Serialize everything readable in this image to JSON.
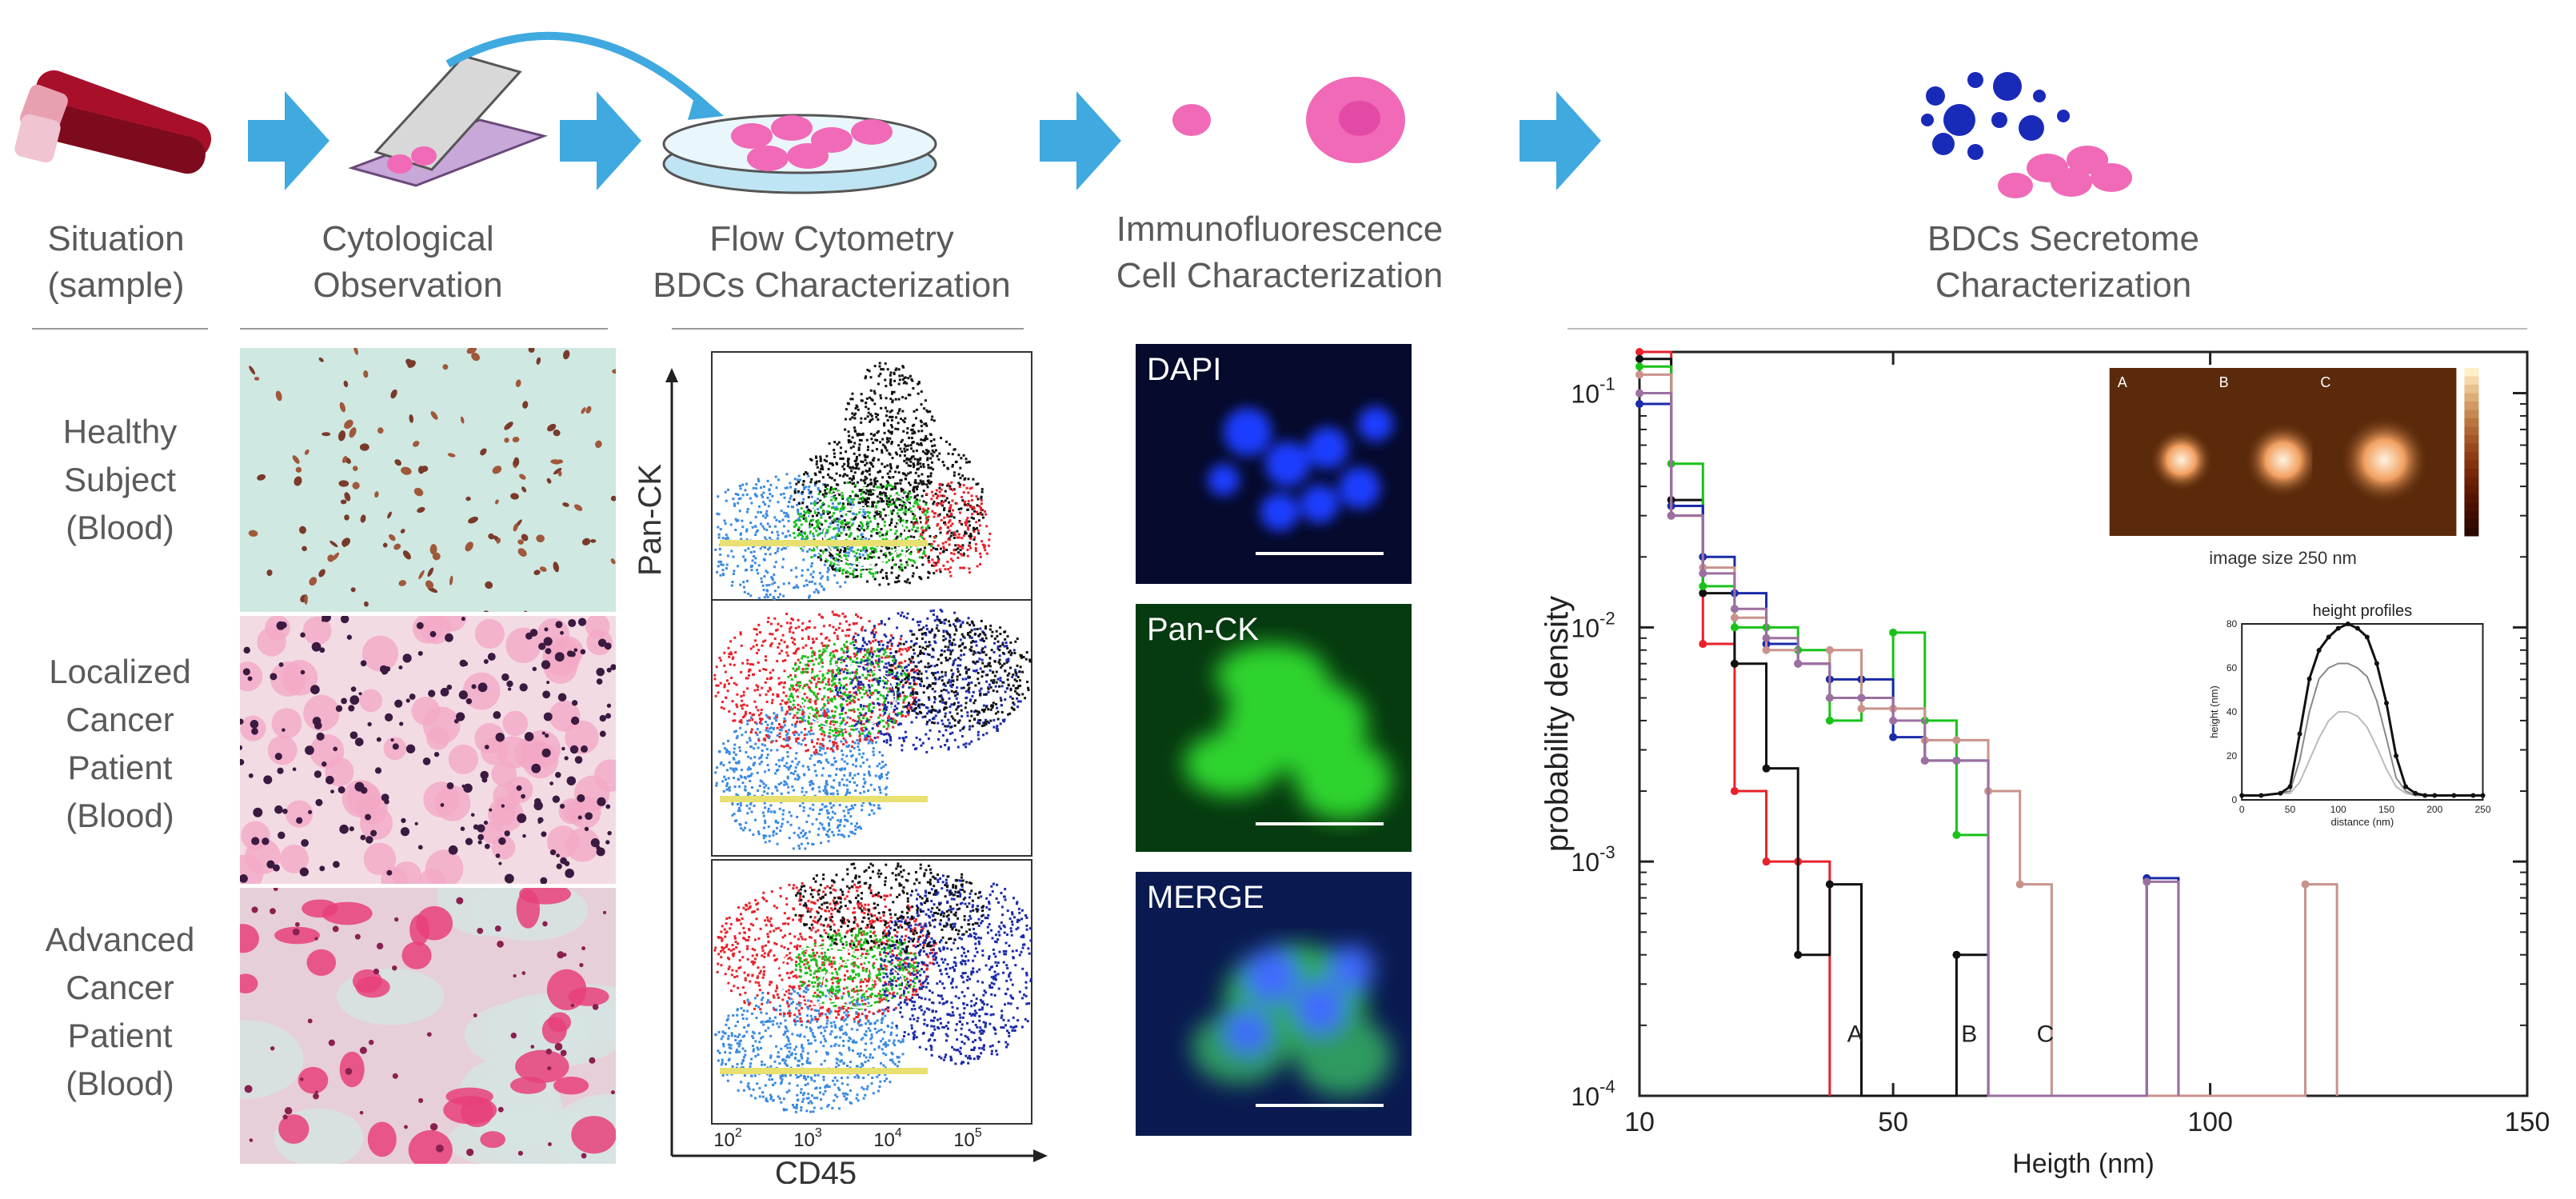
{
  "headers": {
    "situation": "Situation\n(sample)",
    "cytology": "Cytological\nObservation",
    "flow": "Flow Cytometry\nBDCs Characterization",
    "immuno": "Immunofluorescence\nCell Characterization",
    "secretome": "BDCs Secretome\nCharacterization"
  },
  "rows": {
    "healthy": "Healthy\nSubject\n(Blood)",
    "localized": "Localized\nCancer\nPatient\n(Blood)",
    "advanced": "Advanced\nCancer\nPatient\n(Blood)"
  },
  "flow_axes": {
    "y": "Pan-CK",
    "x": "CD45"
  },
  "flow_ticks": [
    {
      "b": "10",
      "e": "2"
    },
    {
      "b": "10",
      "e": "3"
    },
    {
      "b": "10",
      "e": "4"
    },
    {
      "b": "10",
      "e": "5"
    }
  ],
  "if_labels": [
    "DAPI",
    "Pan-CK",
    "MERGE"
  ],
  "colors": {
    "arrow": "#3fa9e0",
    "blood": "#a8102a",
    "cell": "#f06ab8",
    "red": "#e8222b",
    "black": "#111111",
    "green": "#19c219",
    "blue": "#1a2aa8",
    "brown": "#c9938c",
    "purple": "#9b6fa0"
  },
  "chart_data": {
    "type": "line",
    "step": true,
    "xscale": "linear",
    "yscale": "log",
    "xlim": [
      10,
      150
    ],
    "ylim": [
      0.0001,
      0.15
    ],
    "xlabel": "Heigth (nm)",
    "ylabel": "probability density",
    "xticks": [
      "10",
      "50",
      "100",
      "150"
    ],
    "yticks": [
      {
        "b": "10",
        "e": "-1"
      },
      {
        "b": "10",
        "e": "-2"
      },
      {
        "b": "10",
        "e": "-3"
      },
      {
        "b": "10",
        "e": "-4"
      }
    ],
    "peak_labels": [
      "A",
      "B",
      "C"
    ],
    "series": [
      {
        "name": "red",
        "x": [
          10,
          15,
          20,
          25,
          30,
          35,
          40
        ],
        "y": [
          0.15,
          0.03,
          0.0085,
          0.002,
          0.001,
          0.001,
          0.0001
        ]
      },
      {
        "name": "black",
        "x": [
          10,
          15,
          20,
          25,
          30,
          35,
          40,
          45,
          55,
          60,
          65
        ],
        "y": [
          0.14,
          0.035,
          0.014,
          0.007,
          0.0025,
          0.0004,
          0.0008,
          0.0001,
          0.0001,
          0.0004,
          0.0001
        ]
      },
      {
        "name": "green",
        "x": [
          10,
          15,
          20,
          25,
          30,
          35,
          40,
          45,
          50,
          55,
          60,
          65
        ],
        "y": [
          0.13,
          0.05,
          0.015,
          0.01,
          0.01,
          0.008,
          0.004,
          0.005,
          0.0095,
          0.004,
          0.0013,
          0.0001
        ]
      },
      {
        "name": "blue",
        "x": [
          10,
          15,
          20,
          25,
          30,
          35,
          40,
          45,
          50,
          55,
          60,
          65,
          90,
          95
        ],
        "y": [
          0.09,
          0.033,
          0.02,
          0.014,
          0.0085,
          0.007,
          0.006,
          0.006,
          0.0034,
          0.0027,
          0.0027,
          0.0001,
          0.00085,
          0.0001
        ]
      },
      {
        "name": "brown",
        "x": [
          10,
          15,
          20,
          25,
          30,
          35,
          40,
          45,
          50,
          55,
          60,
          65,
          70,
          75,
          115,
          120
        ],
        "y": [
          0.12,
          0.03,
          0.018,
          0.011,
          0.008,
          0.007,
          0.008,
          0.0045,
          0.0045,
          0.0033,
          0.0033,
          0.002,
          0.0008,
          0.0001,
          0.0008,
          0.0001
        ]
      },
      {
        "name": "purple",
        "x": [
          10,
          15,
          20,
          25,
          30,
          35,
          40,
          45,
          50,
          55,
          60,
          65,
          90,
          95
        ],
        "y": [
          0.1,
          0.03,
          0.017,
          0.012,
          0.009,
          0.007,
          0.005,
          0.005,
          0.004,
          0.0027,
          0.0027,
          0.0001,
          0.00082,
          0.0001
        ]
      }
    ],
    "inset": {
      "afm_labels": [
        "A",
        "B",
        "C"
      ],
      "caption": "image size 250 nm",
      "profile_title": "height profiles",
      "profile_xlabel": "distance (nm)",
      "profile_ylabel": "height (nm)",
      "profile_xticks": [
        "0",
        "50",
        "100",
        "150",
        "200",
        "250"
      ],
      "profile_yticks": [
        "0",
        "20",
        "40",
        "60",
        "80"
      ],
      "profile_x": [
        0,
        20,
        40,
        50,
        60,
        70,
        80,
        90,
        100,
        110,
        120,
        130,
        140,
        150,
        160,
        170,
        180,
        190,
        200,
        220,
        240,
        250
      ],
      "profile_series": [
        {
          "name": "A",
          "y": [
            2,
            2,
            3,
            3,
            8,
            18,
            28,
            36,
            40,
            40,
            38,
            33,
            24,
            14,
            6,
            3,
            2,
            2,
            2,
            2,
            2,
            2
          ]
        },
        {
          "name": "B",
          "y": [
            2,
            2,
            3,
            4,
            18,
            40,
            55,
            60,
            62,
            62,
            60,
            56,
            45,
            28,
            10,
            4,
            2,
            2,
            2,
            2,
            2,
            2
          ]
        },
        {
          "name": "C",
          "y": [
            2,
            2,
            3,
            6,
            30,
            55,
            68,
            74,
            78,
            80,
            78,
            74,
            62,
            44,
            20,
            6,
            3,
            2,
            2,
            2,
            2,
            2
          ]
        }
      ]
    }
  }
}
